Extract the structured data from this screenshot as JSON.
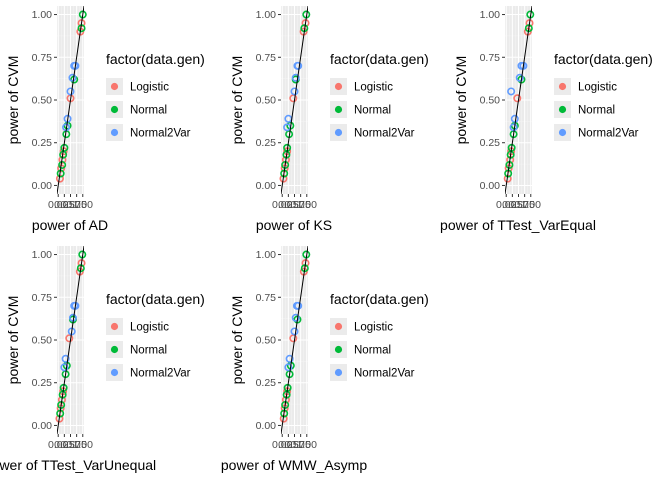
{
  "colors": {
    "panel_bg": "#EBEBEB",
    "grid_major": "#FFFFFF",
    "grid_minor": "#F5F5F5",
    "identity_line": "#000000",
    "Logistic": "#F8766D",
    "Normal": "#00BA38",
    "Normal2Var": "#619CFF"
  },
  "chart_data": [
    {
      "type": "scatter",
      "xlabel": "power of AD",
      "ylabel": "power of CVM",
      "xlim": [
        0,
        1
      ],
      "ylim": [
        0,
        1
      ],
      "x_tick_labels": [
        "0.00",
        "0.25",
        "0.50",
        "0.75",
        "1.00"
      ],
      "y_tick_labels": [
        "0.00",
        "0.25",
        "0.50",
        "0.75",
        "1.00"
      ],
      "grid": true,
      "reference_line": "y = x",
      "legend": {
        "title": "factor(data.gen)",
        "position": "right",
        "entries": [
          "Logistic",
          "Normal",
          "Normal2Var"
        ]
      },
      "series": [
        {
          "name": "Logistic",
          "points": [
            [
              0.07,
              0.04
            ],
            [
              0.12,
              0.1
            ],
            [
              0.17,
              0.15
            ],
            [
              0.22,
              0.2
            ],
            [
              0.5,
              0.51
            ],
            [
              0.9,
              0.9
            ],
            [
              0.95,
              0.95
            ]
          ]
        },
        {
          "name": "Normal",
          "points": [
            [
              0.1,
              0.07
            ],
            [
              0.16,
              0.12
            ],
            [
              0.2,
              0.18
            ],
            [
              0.25,
              0.22
            ],
            [
              0.33,
              0.3
            ],
            [
              0.38,
              0.35
            ],
            [
              0.65,
              0.62
            ],
            [
              0.95,
              0.92
            ],
            [
              1.0,
              1.0
            ]
          ]
        },
        {
          "name": "Normal2Var",
          "points": [
            [
              0.32,
              0.34
            ],
            [
              0.38,
              0.39
            ],
            [
              0.5,
              0.55
            ],
            [
              0.58,
              0.63
            ],
            [
              0.65,
              0.7
            ],
            [
              0.7,
              0.7
            ]
          ]
        }
      ]
    },
    {
      "type": "scatter",
      "xlabel": "power of KS",
      "ylabel": "power of CVM",
      "xlim": [
        0,
        1
      ],
      "ylim": [
        0,
        1
      ],
      "x_tick_labels": [
        "0.00",
        "0.25",
        "0.50",
        "0.75",
        "1.00"
      ],
      "y_tick_labels": [
        "0.00",
        "0.25",
        "0.50",
        "0.75",
        "1.00"
      ],
      "grid": true,
      "reference_line": "y = x",
      "legend": {
        "title": "factor(data.gen)",
        "position": "right",
        "entries": [
          "Logistic",
          "Normal",
          "Normal2Var"
        ]
      },
      "series": [
        {
          "name": "Logistic",
          "points": [
            [
              0.05,
              0.04
            ],
            [
              0.1,
              0.1
            ],
            [
              0.15,
              0.15
            ],
            [
              0.2,
              0.2
            ],
            [
              0.45,
              0.51
            ],
            [
              0.87,
              0.9
            ],
            [
              0.95,
              0.95
            ]
          ]
        },
        {
          "name": "Normal",
          "points": [
            [
              0.08,
              0.07
            ],
            [
              0.12,
              0.12
            ],
            [
              0.17,
              0.18
            ],
            [
              0.2,
              0.22
            ],
            [
              0.28,
              0.3
            ],
            [
              0.33,
              0.35
            ],
            [
              0.55,
              0.62
            ],
            [
              0.9,
              0.92
            ],
            [
              0.98,
              1.0
            ]
          ]
        },
        {
          "name": "Normal2Var",
          "points": [
            [
              0.2,
              0.34
            ],
            [
              0.25,
              0.39
            ],
            [
              0.5,
              0.55
            ],
            [
              0.55,
              0.63
            ],
            [
              0.62,
              0.7
            ],
            [
              0.65,
              0.7
            ]
          ]
        }
      ]
    },
    {
      "type": "scatter",
      "xlabel": "power of TTest_VarEqual",
      "ylabel": "power of CVM",
      "xlim": [
        0,
        1
      ],
      "ylim": [
        0,
        1
      ],
      "x_tick_labels": [
        "0.00",
        "0.25",
        "0.50",
        "0.75",
        "1.00"
      ],
      "y_tick_labels": [
        "0.00",
        "0.25",
        "0.50",
        "0.75",
        "1.00"
      ],
      "grid": true,
      "reference_line": "y = x",
      "legend": {
        "title": "factor(data.gen)",
        "position": "right",
        "entries": [
          "Logistic",
          "Normal",
          "Normal2Var"
        ]
      },
      "series": [
        {
          "name": "Logistic",
          "points": [
            [
              0.06,
              0.04
            ],
            [
              0.1,
              0.1
            ],
            [
              0.16,
              0.15
            ],
            [
              0.2,
              0.2
            ],
            [
              0.45,
              0.51
            ],
            [
              0.88,
              0.9
            ],
            [
              0.95,
              0.95
            ]
          ]
        },
        {
          "name": "Normal",
          "points": [
            [
              0.08,
              0.07
            ],
            [
              0.13,
              0.12
            ],
            [
              0.18,
              0.18
            ],
            [
              0.22,
              0.22
            ],
            [
              0.3,
              0.3
            ],
            [
              0.35,
              0.35
            ],
            [
              0.62,
              0.62
            ],
            [
              0.92,
              0.92
            ],
            [
              0.98,
              1.0
            ]
          ]
        },
        {
          "name": "Normal2Var",
          "points": [
            [
              0.2,
              0.55
            ],
            [
              0.3,
              0.34
            ],
            [
              0.35,
              0.39
            ],
            [
              0.55,
              0.63
            ],
            [
              0.62,
              0.7
            ],
            [
              0.7,
              0.7
            ]
          ]
        }
      ]
    },
    {
      "type": "scatter",
      "xlabel": "power of TTest_VarUnequal",
      "ylabel": "power of CVM",
      "xlim": [
        0,
        1
      ],
      "ylim": [
        0,
        1
      ],
      "x_tick_labels": [
        "0.00",
        "0.25",
        "0.50",
        "0.75",
        "1.00"
      ],
      "y_tick_labels": [
        "0.00",
        "0.25",
        "0.50",
        "0.75",
        "1.00"
      ],
      "grid": true,
      "reference_line": "y = x",
      "legend": {
        "title": "factor(data.gen)",
        "position": "right",
        "entries": [
          "Logistic",
          "Normal",
          "Normal2Var"
        ]
      },
      "series": [
        {
          "name": "Logistic",
          "points": [
            [
              0.05,
              0.04
            ],
            [
              0.1,
              0.1
            ],
            [
              0.15,
              0.15
            ],
            [
              0.2,
              0.2
            ],
            [
              0.45,
              0.51
            ],
            [
              0.88,
              0.9
            ],
            [
              0.95,
              0.95
            ]
          ]
        },
        {
          "name": "Normal",
          "points": [
            [
              0.08,
              0.07
            ],
            [
              0.12,
              0.12
            ],
            [
              0.18,
              0.18
            ],
            [
              0.22,
              0.22
            ],
            [
              0.3,
              0.3
            ],
            [
              0.35,
              0.35
            ],
            [
              0.6,
              0.62
            ],
            [
              0.92,
              0.92
            ],
            [
              0.98,
              1.0
            ]
          ]
        },
        {
          "name": "Normal2Var",
          "points": [
            [
              0.25,
              0.34
            ],
            [
              0.3,
              0.39
            ],
            [
              0.55,
              0.55
            ],
            [
              0.6,
              0.63
            ],
            [
              0.65,
              0.7
            ],
            [
              0.7,
              0.7
            ]
          ]
        }
      ]
    },
    {
      "type": "scatter",
      "xlabel": "power of WMW_Asymp",
      "ylabel": "power of CVM",
      "xlim": [
        0,
        1
      ],
      "ylim": [
        0,
        1
      ],
      "x_tick_labels": [
        "0.00",
        "0.25",
        "0.50",
        "0.75",
        "1.00"
      ],
      "y_tick_labels": [
        "0.00",
        "0.25",
        "0.50",
        "0.75",
        "1.00"
      ],
      "grid": true,
      "reference_line": "y = x",
      "legend": {
        "title": "factor(data.gen)",
        "position": "right",
        "entries": [
          "Logistic",
          "Normal",
          "Normal2Var"
        ]
      },
      "series": [
        {
          "name": "Logistic",
          "points": [
            [
              0.06,
              0.04
            ],
            [
              0.1,
              0.1
            ],
            [
              0.15,
              0.15
            ],
            [
              0.2,
              0.2
            ],
            [
              0.45,
              0.51
            ],
            [
              0.88,
              0.9
            ],
            [
              0.95,
              0.95
            ]
          ]
        },
        {
          "name": "Normal",
          "points": [
            [
              0.08,
              0.07
            ],
            [
              0.12,
              0.12
            ],
            [
              0.18,
              0.18
            ],
            [
              0.22,
              0.22
            ],
            [
              0.3,
              0.3
            ],
            [
              0.35,
              0.35
            ],
            [
              0.62,
              0.62
            ],
            [
              0.92,
              0.92
            ],
            [
              0.98,
              1.0
            ]
          ]
        },
        {
          "name": "Normal2Var",
          "points": [
            [
              0.25,
              0.34
            ],
            [
              0.3,
              0.39
            ],
            [
              0.5,
              0.55
            ],
            [
              0.55,
              0.63
            ],
            [
              0.6,
              0.7
            ],
            [
              0.65,
              0.7
            ]
          ]
        }
      ]
    }
  ]
}
